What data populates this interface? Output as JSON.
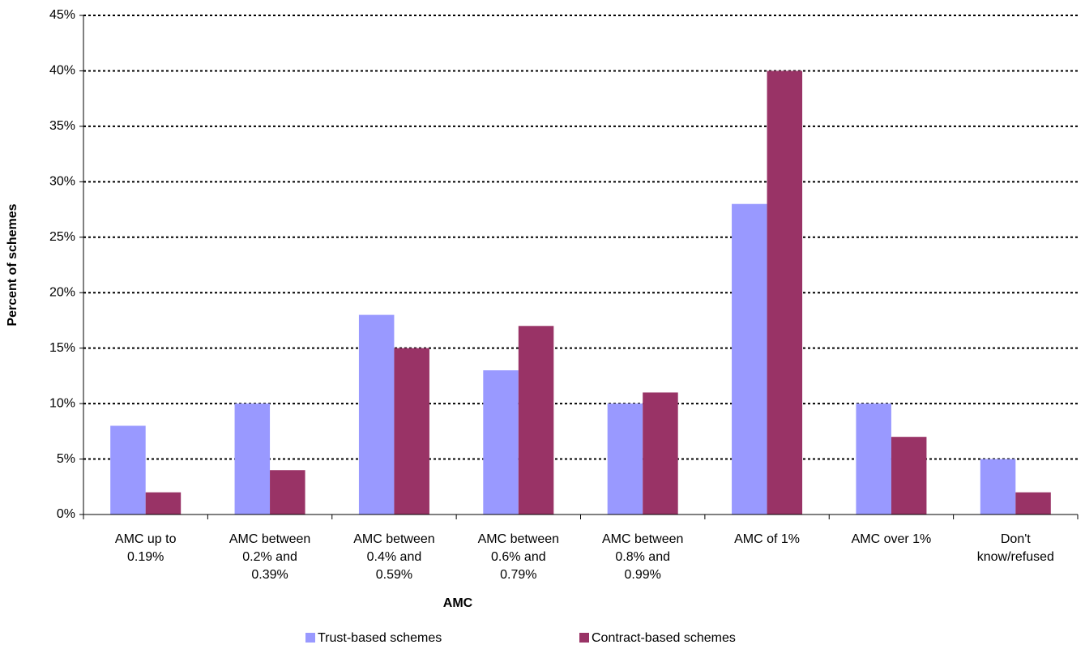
{
  "chart_data": {
    "type": "bar",
    "x_label": "AMC",
    "y_label": "Percent of schemes",
    "categories": [
      "AMC up to 0.19%",
      "AMC between 0.2% and 0.39%",
      "AMC between 0.4% and 0.59%",
      "AMC between 0.6% and 0.79%",
      "AMC between 0.8% and 0.99%",
      "AMC of 1%",
      "AMC over 1%",
      "Don't know/refused"
    ],
    "series": [
      {
        "name": "Trust-based schemes",
        "color": "#9999ff",
        "values": [
          8,
          10,
          18,
          13,
          10,
          28,
          10,
          5
        ]
      },
      {
        "name": "Contract-based schemes",
        "color": "#993366",
        "values": [
          2,
          4,
          15,
          17,
          11,
          40,
          7,
          2
        ]
      }
    ],
    "ylim": [
      0,
      45
    ],
    "yticks": [
      {
        "value": 0,
        "label": "0%"
      },
      {
        "value": 5,
        "label": "5%"
      },
      {
        "value": 10,
        "label": "10%"
      },
      {
        "value": 15,
        "label": "15%"
      },
      {
        "value": 20,
        "label": "20%"
      },
      {
        "value": 25,
        "label": "25%"
      },
      {
        "value": 30,
        "label": "30%"
      },
      {
        "value": 35,
        "label": "35%"
      },
      {
        "value": 40,
        "label": "40%"
      },
      {
        "value": 45,
        "label": "45%"
      }
    ],
    "grid": true,
    "legend": "bottom"
  }
}
